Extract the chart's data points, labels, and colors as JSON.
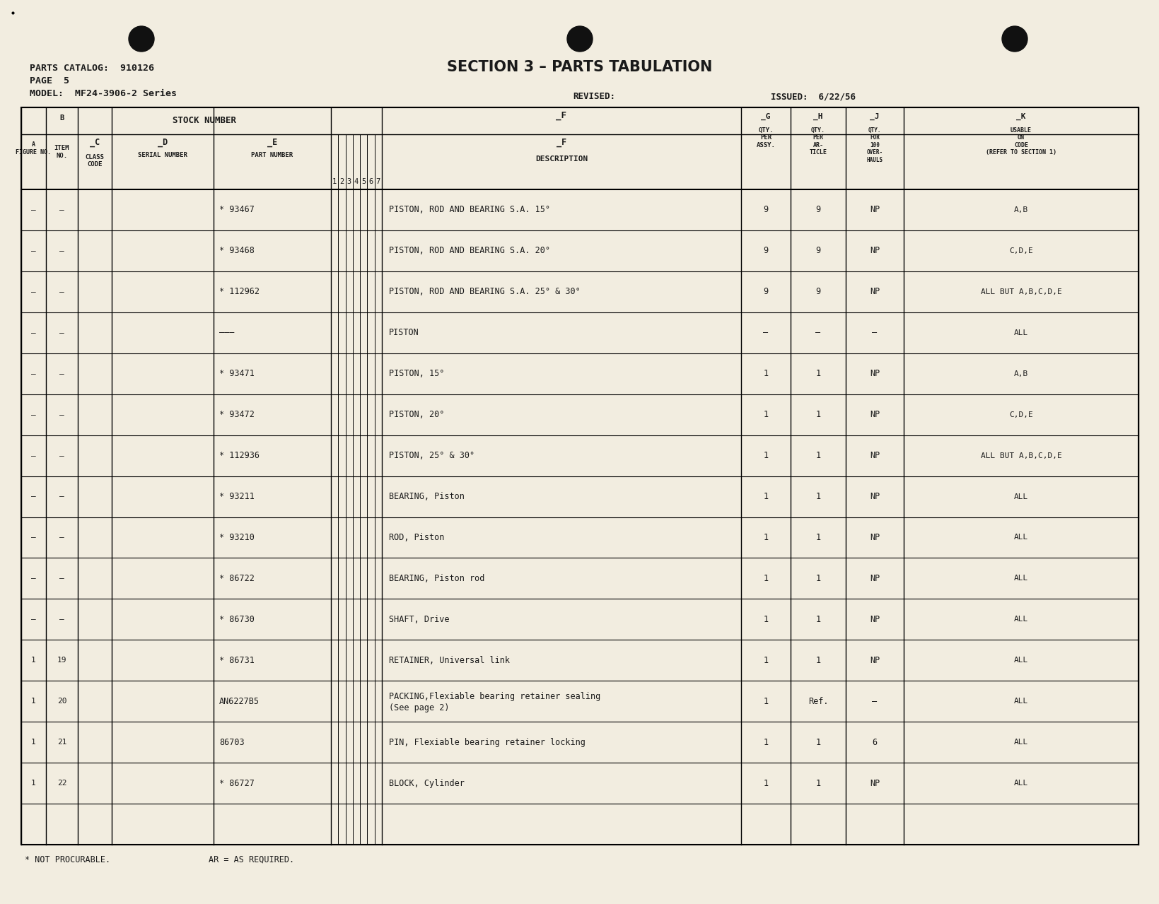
{
  "page_bg": "#f2ede0",
  "title": "SECTION 3 – PARTS TABULATION",
  "catalog_label": "PARTS CATALOG:",
  "catalog_num": "910126",
  "page_label": "PAGE",
  "page_num": "5",
  "model_label": "MODEL:",
  "model_num": "MF24-3906-2 Series",
  "revised_label": "REVISED:",
  "issued_label": "ISSUED:",
  "issued_date": "6/22/56",
  "footnote1": "* NOT PROCURABLE.",
  "footnote2": "AR = AS REQUIRED.",
  "col_A_label": "A",
  "col_A_sub": "FIGURE NO.",
  "col_B_label": "B",
  "col_B_sub": "ITEM\nNO.",
  "col_stock": "STOCK NUMBER",
  "col_C_label": "C",
  "col_C_sub": "CLASS\nCODE",
  "col_D_label": "D",
  "col_D_sub": "SERIAL NUMBER",
  "col_E_label": "E",
  "col_E_sub": "PART NUMBER",
  "col_serial_nums": [
    "1",
    "2",
    "3",
    "4",
    "5",
    "6",
    "7"
  ],
  "col_F_label": "F",
  "col_F_sub": "DESCRIPTION",
  "col_G_label": "G",
  "col_G_sub": "QTY.\nPER\nASSY.",
  "col_H_label": "H",
  "col_H_sub": "QTY.\nPER\nAR-\nTICLE",
  "col_J_label": "J",
  "col_J_sub": "QTY.\nFOR\n100\nOVER-\nHAULS",
  "col_K_label": "K",
  "col_K_sub": "USABLE\nON\nCODE\n(REFER TO SECTION 1)",
  "rows": [
    {
      "fig": "–",
      "item": "–",
      "part": "* 93467",
      "desc": "PISTON, ROD AND BEARING S.A. 15°",
      "desc2": "",
      "qty_assy": "9",
      "qty_art": "9",
      "qty_oh": "NP",
      "usable": "A,B"
    },
    {
      "fig": "–",
      "item": "–",
      "part": "* 93468",
      "desc": "PISTON, ROD AND BEARING S.A. 20°",
      "desc2": "",
      "qty_assy": "9",
      "qty_art": "9",
      "qty_oh": "NP",
      "usable": "C,D,E"
    },
    {
      "fig": "–",
      "item": "–",
      "part": "* 112962",
      "desc": "PISTON, ROD AND BEARING S.A. 25° & 30°",
      "desc2": "",
      "qty_assy": "9",
      "qty_art": "9",
      "qty_oh": "NP",
      "usable": "ALL BUT A,B,C,D,E"
    },
    {
      "fig": "–",
      "item": "–",
      "part": "———",
      "desc": "PISTON",
      "desc2": "",
      "qty_assy": "–",
      "qty_art": "–",
      "qty_oh": "–",
      "usable": "ALL"
    },
    {
      "fig": "–",
      "item": "–",
      "part": "* 93471",
      "desc": "PISTON, 15°",
      "desc2": "",
      "qty_assy": "1",
      "qty_art": "1",
      "qty_oh": "NP",
      "usable": "A,B"
    },
    {
      "fig": "–",
      "item": "–",
      "part": "* 93472",
      "desc": "PISTON, 20°",
      "desc2": "",
      "qty_assy": "1",
      "qty_art": "1",
      "qty_oh": "NP",
      "usable": "C,D,E"
    },
    {
      "fig": "–",
      "item": "–",
      "part": "* 112936",
      "desc": "PISTON, 25° & 30°",
      "desc2": "",
      "qty_assy": "1",
      "qty_art": "1",
      "qty_oh": "NP",
      "usable": "ALL BUT A,B,C,D,E"
    },
    {
      "fig": "–",
      "item": "–",
      "part": "* 93211",
      "desc": "BEARING, Piston",
      "desc2": "",
      "qty_assy": "1",
      "qty_art": "1",
      "qty_oh": "NP",
      "usable": "ALL"
    },
    {
      "fig": "–",
      "item": "–",
      "part": "* 93210",
      "desc": "ROD, Piston",
      "desc2": "",
      "qty_assy": "1",
      "qty_art": "1",
      "qty_oh": "NP",
      "usable": "ALL"
    },
    {
      "fig": "–",
      "item": "–",
      "part": "* 86722",
      "desc": "BEARING, Piston rod",
      "desc2": "",
      "qty_assy": "1",
      "qty_art": "1",
      "qty_oh": "NP",
      "usable": "ALL"
    },
    {
      "fig": "–",
      "item": "–",
      "part": "* 86730",
      "desc": "SHAFT, Drive",
      "desc2": "",
      "qty_assy": "1",
      "qty_art": "1",
      "qty_oh": "NP",
      "usable": "ALL"
    },
    {
      "fig": "1",
      "item": "19",
      "part": "* 86731",
      "desc": "RETAINER, Universal link",
      "desc2": "",
      "qty_assy": "1",
      "qty_art": "1",
      "qty_oh": "NP",
      "usable": "ALL"
    },
    {
      "fig": "1",
      "item": "20",
      "part": "AN6227B5",
      "desc": "PACKING,Flexiable bearing retainer sealing",
      "desc2": "(See page 2)",
      "qty_assy": "1",
      "qty_art": "Ref.",
      "qty_oh": "–",
      "usable": "ALL"
    },
    {
      "fig": "1",
      "item": "21",
      "part": "86703",
      "desc": "PIN, Flexiable bearing retainer locking",
      "desc2": "",
      "qty_assy": "1",
      "qty_art": "1",
      "qty_oh": "6",
      "usable": "ALL"
    },
    {
      "fig": "1",
      "item": "22",
      "part": "* 86727",
      "desc": "BLOCK, Cylinder",
      "desc2": "",
      "qty_assy": "1",
      "qty_art": "1",
      "qty_oh": "NP",
      "usable": "ALL"
    }
  ]
}
